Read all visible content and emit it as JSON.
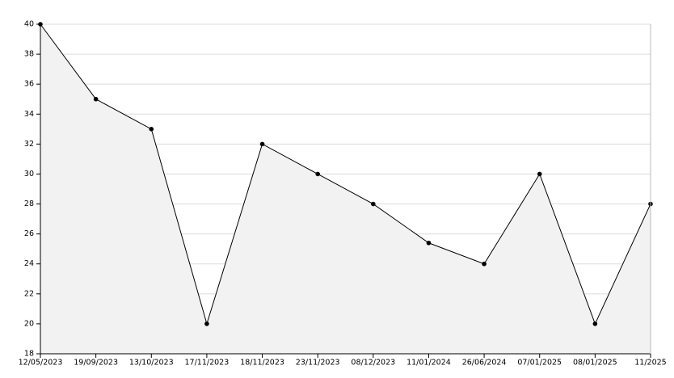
{
  "chart_data": {
    "type": "line",
    "categories": [
      "12/05/2023",
      "19/09/2023",
      "13/10/2023",
      "17/11/2023",
      "18/11/2023",
      "23/11/2023",
      "08/12/2023",
      "11/01/2024",
      "26/06/2024",
      "07/01/2025",
      "08/01/2025",
      "11/2025"
    ],
    "values": [
      40,
      35,
      33,
      20,
      32,
      30,
      28,
      25.4,
      24,
      30,
      20,
      28
    ],
    "color": "#000000",
    "fill": "#f2f2f2",
    "ylim": [
      18,
      40
    ],
    "yticks": [
      18,
      20,
      22,
      24,
      26,
      28,
      30,
      32,
      34,
      36,
      38,
      40
    ],
    "grid": true
  }
}
